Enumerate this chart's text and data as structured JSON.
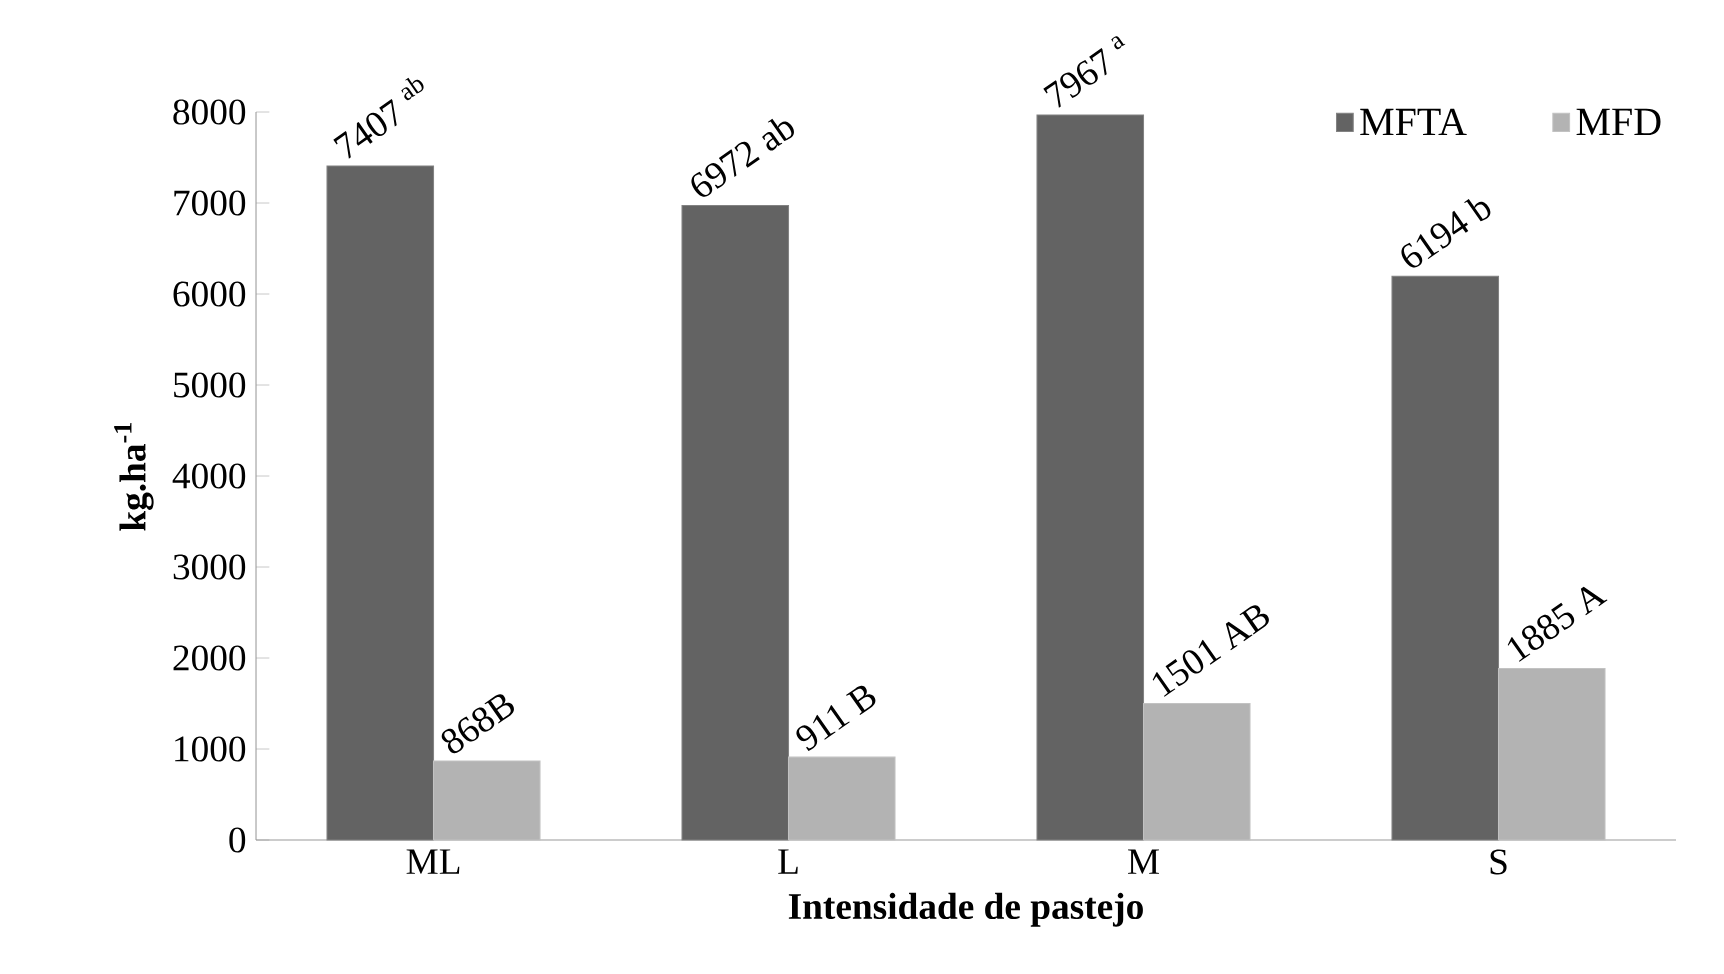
{
  "chart_data": {
    "type": "bar",
    "xlabel": "Intensidade de pastejo",
    "ylabel": "kg.ha$^{-1}$",
    "categories": [
      "ML",
      "L",
      "M",
      "S"
    ],
    "series": [
      {
        "name": "MFTA",
        "color": "#636363",
        "values": [
          7407,
          6972,
          7967,
          6194
        ],
        "value_labels": [
          "7407 $^{ab}$",
          "6972 ab",
          "7967 $^{a}$",
          "6194 b"
        ]
      },
      {
        "name": "MFD",
        "color": "#b3b3b3",
        "values": [
          868,
          911,
          1501,
          1885
        ],
        "value_labels": [
          "868B",
          "911 B",
          "1501 AB",
          "1885 A"
        ]
      }
    ],
    "ylim": [
      0,
      8000
    ],
    "yticks": [
      0,
      1000,
      2000,
      3000,
      4000,
      5000,
      6000,
      7000,
      8000
    ],
    "legend": "top right"
  }
}
